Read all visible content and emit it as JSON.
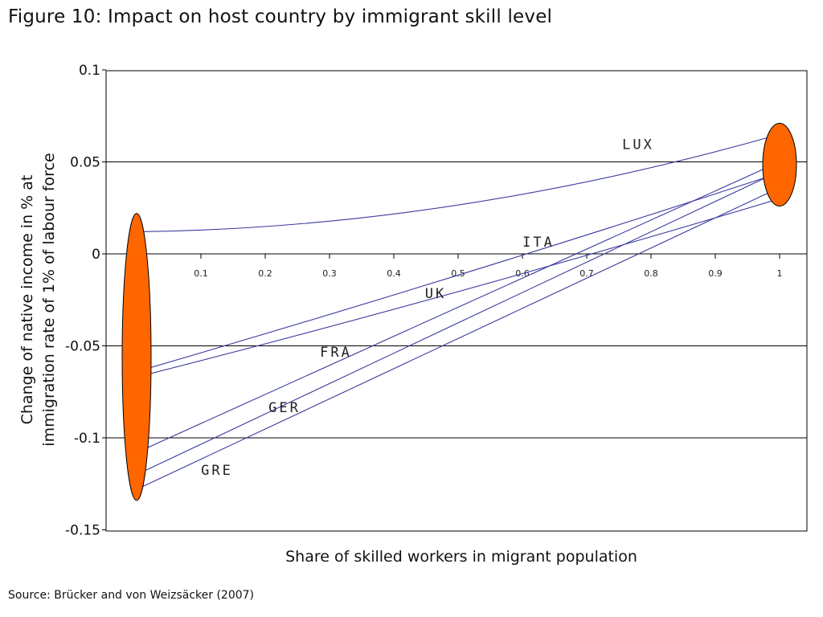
{
  "figure_title": "Figure 10: Impact on host country by immigrant skill level",
  "source": "Source: Brücker and von Weizsäcker (2007)",
  "colors": {
    "series_line": "#3a3aa0",
    "ellipse_fill": "#ff6600",
    "gridline": "#000000"
  },
  "chart_data": {
    "type": "line",
    "title": "Figure 10: Impact on host country by immigrant skill level",
    "xlabel": "Share of skilled workers in migrant population",
    "ylabel_lines": [
      "Change of native income in % at",
      "immigration rate of 1% of labour force"
    ],
    "xlim": [
      0,
      1
    ],
    "ylim": [
      -0.15,
      0.1
    ],
    "x_ticks": [
      "0.1",
      "0.2",
      "0.3",
      "0.4",
      "0.5",
      "0.6",
      "0.7",
      "0.8",
      "0.9",
      "1"
    ],
    "y_ticks": [
      "0.1",
      "0.05",
      "0",
      "-0.05",
      "-0.1",
      "-0.15"
    ],
    "grid": "horizontal",
    "series": [
      {
        "name": "LUX",
        "x": [
          0,
          1
        ],
        "y": [
          0.012,
          0.065
        ],
        "curve": 0.28
      },
      {
        "name": "ITA",
        "x": [
          0,
          1
        ],
        "y": [
          -0.067,
          0.03
        ],
        "curve": 0.05
      },
      {
        "name": "UK",
        "x": [
          0,
          1
        ],
        "y": [
          -0.064,
          0.044
        ],
        "curve": 0.04
      },
      {
        "name": "FRA",
        "x": [
          0,
          1
        ],
        "y": [
          -0.108,
          0.05
        ],
        "curve": 0
      },
      {
        "name": "GER",
        "x": [
          0,
          1
        ],
        "y": [
          -0.12,
          0.045
        ],
        "curve": 0
      },
      {
        "name": "GRE",
        "x": [
          0,
          1
        ],
        "y": [
          -0.128,
          0.036
        ],
        "curve": 0
      }
    ],
    "labels": [
      {
        "text": "LUX",
        "x": 0.78,
        "y": 0.057
      },
      {
        "text": "ITA",
        "x": 0.625,
        "y": 0.004
      },
      {
        "text": "UK",
        "x": 0.465,
        "y": -0.024
      },
      {
        "text": "FRA",
        "x": 0.31,
        "y": -0.056
      },
      {
        "text": "GER",
        "x": 0.23,
        "y": -0.086
      },
      {
        "text": "GRE",
        "x": 0.125,
        "y": -0.12
      }
    ],
    "annotations": [
      {
        "shape": "ellipse",
        "x": 0,
        "y_range": [
          -0.134,
          0.022
        ]
      },
      {
        "shape": "ellipse",
        "x": 1,
        "y_range": [
          0.026,
          0.071
        ]
      }
    ]
  }
}
